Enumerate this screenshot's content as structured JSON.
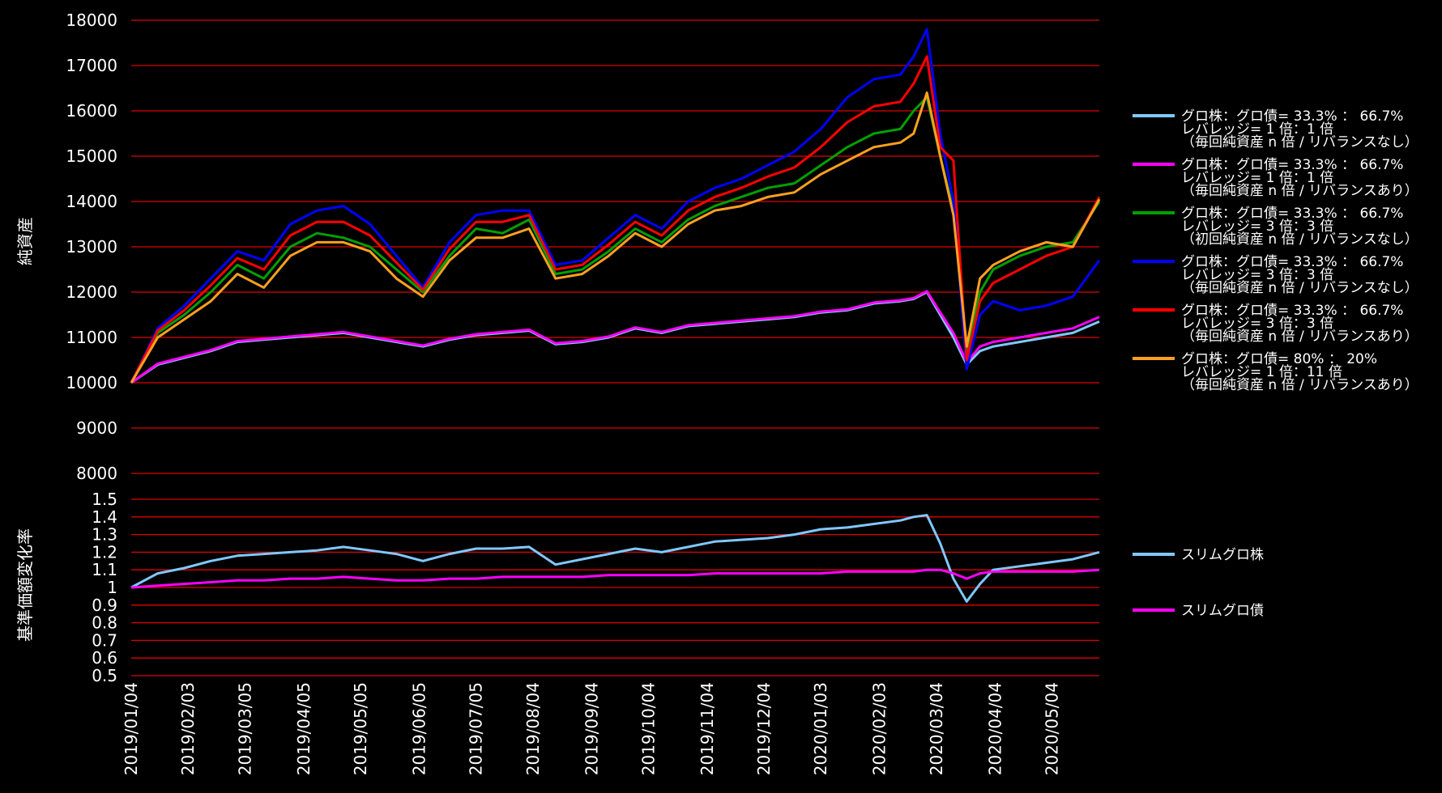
{
  "chart_data": [
    {
      "type": "line",
      "ylabel": "純資産",
      "ylim": [
        8000,
        18000
      ],
      "yticks": [
        8000,
        9000,
        10000,
        11000,
        12000,
        13000,
        14000,
        15000,
        16000,
        17000,
        18000
      ],
      "x_tick_labels": [
        "2019/01/04",
        "2019/02/03",
        "2019/03/05",
        "2019/04/05",
        "2019/05/05",
        "2019/06/05",
        "2019/07/05",
        "2019/08/04",
        "2019/09/04",
        "2019/10/04",
        "2019/11/04",
        "2019/12/04",
        "2020/01/03",
        "2020/02/03",
        "2020/03/04",
        "2020/04/04",
        "2020/05/04"
      ],
      "x": [
        "2019/01/04",
        "2019/01/18",
        "2019/02/01",
        "2019/02/15",
        "2019/03/01",
        "2019/03/15",
        "2019/03/29",
        "2019/04/12",
        "2019/04/26",
        "2019/05/10",
        "2019/05/24",
        "2019/06/07",
        "2019/06/21",
        "2019/07/05",
        "2019/07/19",
        "2019/08/02",
        "2019/08/16",
        "2019/08/30",
        "2019/09/13",
        "2019/09/27",
        "2019/10/11",
        "2019/10/25",
        "2019/11/08",
        "2019/11/22",
        "2019/12/06",
        "2019/12/20",
        "2020/01/03",
        "2020/01/17",
        "2020/01/31",
        "2020/02/14",
        "2020/02/21",
        "2020/02/28",
        "2020/03/06",
        "2020/03/13",
        "2020/03/20",
        "2020/03/27",
        "2020/04/03",
        "2020/04/17",
        "2020/05/01",
        "2020/05/15",
        "2020/05/29"
      ],
      "grid": true,
      "legend": "right",
      "series": [
        {
          "name": "グロ株：グロ債= 33.3% ： 66.7%\nレバレッジ= 1 倍：1 倍\n（毎回純資産 n 倍 / リバランスなし）",
          "color": "#80c8ff",
          "values": [
            10000,
            10400,
            10550,
            10700,
            10900,
            10950,
            11000,
            11050,
            11100,
            11000,
            10900,
            10800,
            10950,
            11050,
            11100,
            11150,
            10850,
            10900,
            11000,
            11200,
            11100,
            11250,
            11300,
            11350,
            11400,
            11450,
            11550,
            11600,
            11750,
            11800,
            11850,
            12000,
            11500,
            11000,
            10400,
            10700,
            10800,
            10900,
            11000,
            11100,
            11350
          ]
        },
        {
          "name": "グロ株：グロ債= 33.3% ： 66.7%\nレバレッジ= 1 倍：1 倍\n（毎回純資産 n 倍 / リバランスあり）",
          "color": "#ff00ff",
          "values": [
            10000,
            10420,
            10570,
            10720,
            10920,
            10970,
            11020,
            11070,
            11120,
            11020,
            10920,
            10820,
            10970,
            11070,
            11120,
            11170,
            10870,
            10920,
            11020,
            11220,
            11120,
            11270,
            11320,
            11370,
            11420,
            11470,
            11570,
            11620,
            11770,
            11820,
            11870,
            12020,
            11550,
            11100,
            10450,
            10800,
            10900,
            11000,
            11100,
            11200,
            11450
          ]
        },
        {
          "name": "グロ株：グロ債= 33.3% ： 66.7%\nレバレッジ= 3 倍：3 倍\n（初回純資産 n 倍 / リバランスなし）",
          "color": "#00a000",
          "values": [
            10000,
            11100,
            11500,
            12000,
            12600,
            12300,
            13000,
            13300,
            13200,
            13000,
            12500,
            12000,
            12800,
            13400,
            13300,
            13600,
            12400,
            12500,
            12900,
            13400,
            13100,
            13600,
            13900,
            14100,
            14300,
            14400,
            14800,
            15200,
            15500,
            15600,
            16000,
            16300,
            15000,
            13800,
            10600,
            12000,
            12500,
            12800,
            13000,
            13100,
            14000
          ]
        },
        {
          "name": "グロ株：グロ債= 33.3% ： 66.7%\nレバレッジ= 3 倍：3 倍\n（毎回純資産 n 倍 / リバランスなし）",
          "color": "#0000ff",
          "values": [
            10000,
            11200,
            11700,
            12300,
            12900,
            12700,
            13500,
            13800,
            13900,
            13500,
            12800,
            12100,
            13100,
            13700,
            13800,
            13800,
            12600,
            12700,
            13200,
            13700,
            13400,
            14000,
            14300,
            14500,
            14800,
            15100,
            15600,
            16300,
            16700,
            16800,
            17200,
            17800,
            15500,
            14000,
            10300,
            11500,
            11800,
            11600,
            11700,
            11900,
            12700
          ]
        },
        {
          "name": "グロ株：グロ債= 33.3% ： 66.7%\nレバレッジ= 3 倍：3 倍\n（毎回純資産 n 倍 / リバランスあり）",
          "color": "#ff0000",
          "values": [
            10000,
            11150,
            11600,
            12150,
            12750,
            12500,
            13250,
            13550,
            13550,
            13250,
            12650,
            12050,
            12950,
            13550,
            13550,
            13700,
            12500,
            12600,
            13050,
            13550,
            13250,
            13800,
            14100,
            14300,
            14550,
            14750,
            15200,
            15750,
            16100,
            16200,
            16600,
            17200,
            15200,
            14900,
            10500,
            11800,
            12200,
            12500,
            12800,
            13000,
            14100
          ]
        },
        {
          "name": "グロ株：グロ債= 80% ： 20%\nレバレッジ= 1 倍：11 倍\n（毎回純資産 n 倍 / リバランスあり）",
          "color": "#ffa020",
          "values": [
            10000,
            11000,
            11400,
            11800,
            12400,
            12100,
            12800,
            13100,
            13100,
            12900,
            12300,
            11900,
            12700,
            13200,
            13200,
            13400,
            12300,
            12400,
            12800,
            13300,
            13000,
            13500,
            13800,
            13900,
            14100,
            14200,
            14600,
            14900,
            15200,
            15300,
            15500,
            16400,
            15000,
            13700,
            10800,
            12300,
            12600,
            12900,
            13100,
            13000,
            14050
          ]
        }
      ]
    },
    {
      "type": "line",
      "ylabel": "基準価額変化率",
      "ylim": [
        0.5,
        1.5
      ],
      "yticks": [
        0.5,
        0.6,
        0.7,
        0.8,
        0.9,
        1,
        1.1,
        1.2,
        1.3,
        1.4,
        1.5
      ],
      "x": [
        "2019/01/04",
        "2019/01/18",
        "2019/02/01",
        "2019/02/15",
        "2019/03/01",
        "2019/03/15",
        "2019/03/29",
        "2019/04/12",
        "2019/04/26",
        "2019/05/10",
        "2019/05/24",
        "2019/06/07",
        "2019/06/21",
        "2019/07/05",
        "2019/07/19",
        "2019/08/02",
        "2019/08/16",
        "2019/08/30",
        "2019/09/13",
        "2019/09/27",
        "2019/10/11",
        "2019/10/25",
        "2019/11/08",
        "2019/11/22",
        "2019/12/06",
        "2019/12/20",
        "2020/01/03",
        "2020/01/17",
        "2020/01/31",
        "2020/02/14",
        "2020/02/21",
        "2020/02/28",
        "2020/03/06",
        "2020/03/13",
        "2020/03/20",
        "2020/03/27",
        "2020/04/03",
        "2020/04/17",
        "2020/05/01",
        "2020/05/15",
        "2020/05/29"
      ],
      "grid": true,
      "legend": "right",
      "series": [
        {
          "name": "スリムグロ株",
          "color": "#80c8ff",
          "values": [
            1.0,
            1.08,
            1.11,
            1.15,
            1.18,
            1.19,
            1.2,
            1.21,
            1.23,
            1.21,
            1.19,
            1.15,
            1.19,
            1.22,
            1.22,
            1.23,
            1.13,
            1.16,
            1.19,
            1.22,
            1.2,
            1.23,
            1.26,
            1.27,
            1.28,
            1.3,
            1.33,
            1.34,
            1.36,
            1.38,
            1.4,
            1.41,
            1.25,
            1.05,
            0.92,
            1.02,
            1.1,
            1.12,
            1.14,
            1.16,
            1.2
          ]
        },
        {
          "name": "スリムグロ債",
          "color": "#ff00ff",
          "values": [
            1.0,
            1.01,
            1.02,
            1.03,
            1.04,
            1.04,
            1.05,
            1.05,
            1.06,
            1.05,
            1.04,
            1.04,
            1.05,
            1.05,
            1.06,
            1.06,
            1.06,
            1.06,
            1.07,
            1.07,
            1.07,
            1.07,
            1.08,
            1.08,
            1.08,
            1.08,
            1.08,
            1.09,
            1.09,
            1.09,
            1.09,
            1.1,
            1.1,
            1.08,
            1.05,
            1.08,
            1.09,
            1.09,
            1.09,
            1.09,
            1.1
          ]
        }
      ]
    }
  ]
}
